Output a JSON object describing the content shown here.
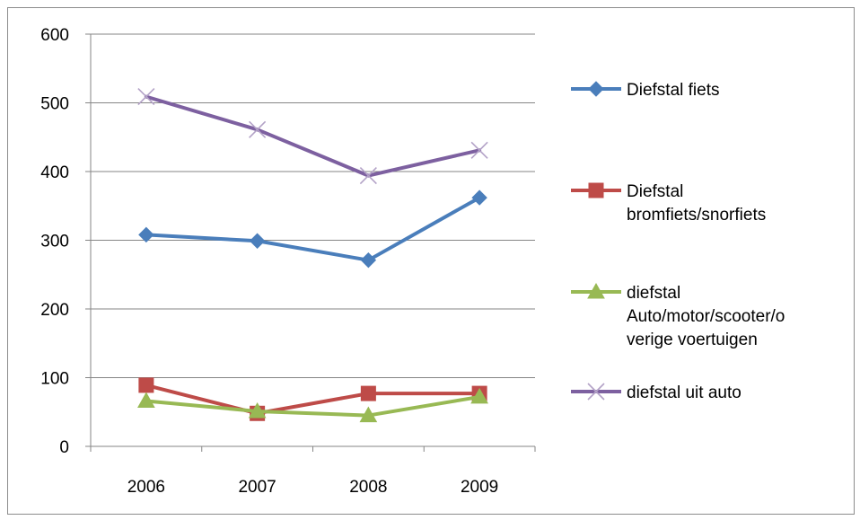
{
  "chart_data": {
    "type": "line",
    "title": "",
    "xlabel": "",
    "ylabel": "",
    "categories": [
      "2006",
      "2007",
      "2008",
      "2009"
    ],
    "ylim": [
      0,
      600
    ],
    "yticks": [
      "0",
      "100",
      "200",
      "300",
      "400",
      "500",
      "600"
    ],
    "grid": true,
    "legend_position": "right",
    "series": [
      {
        "name": "Diefstal fiets",
        "legend_lines": [
          "Diefstal fiets"
        ],
        "values": [
          308,
          299,
          271,
          362
        ],
        "color": "#4a7ebb",
        "marker": "diamond"
      },
      {
        "name": "Diefstal bromfiets/snorfiets",
        "legend_lines": [
          " Diefstal",
          "bromfiets/snorfiets"
        ],
        "values": [
          89,
          48,
          77,
          77
        ],
        "color": "#be4b48",
        "marker": "square"
      },
      {
        "name": "diefstal Auto/motor/scooter/overige voertuigen",
        "legend_lines": [
          "diefstal",
          "Auto/motor/scooter/o",
          "verige voertuigen"
        ],
        "values": [
          66,
          51,
          45,
          72
        ],
        "color": "#98b954",
        "marker": "triangle"
      },
      {
        "name": "diefstal uit auto",
        "legend_lines": [
          "diefstal uit auto"
        ],
        "values": [
          509,
          461,
          394,
          431
        ],
        "color": "#7d60a0",
        "marker": "x"
      }
    ]
  }
}
